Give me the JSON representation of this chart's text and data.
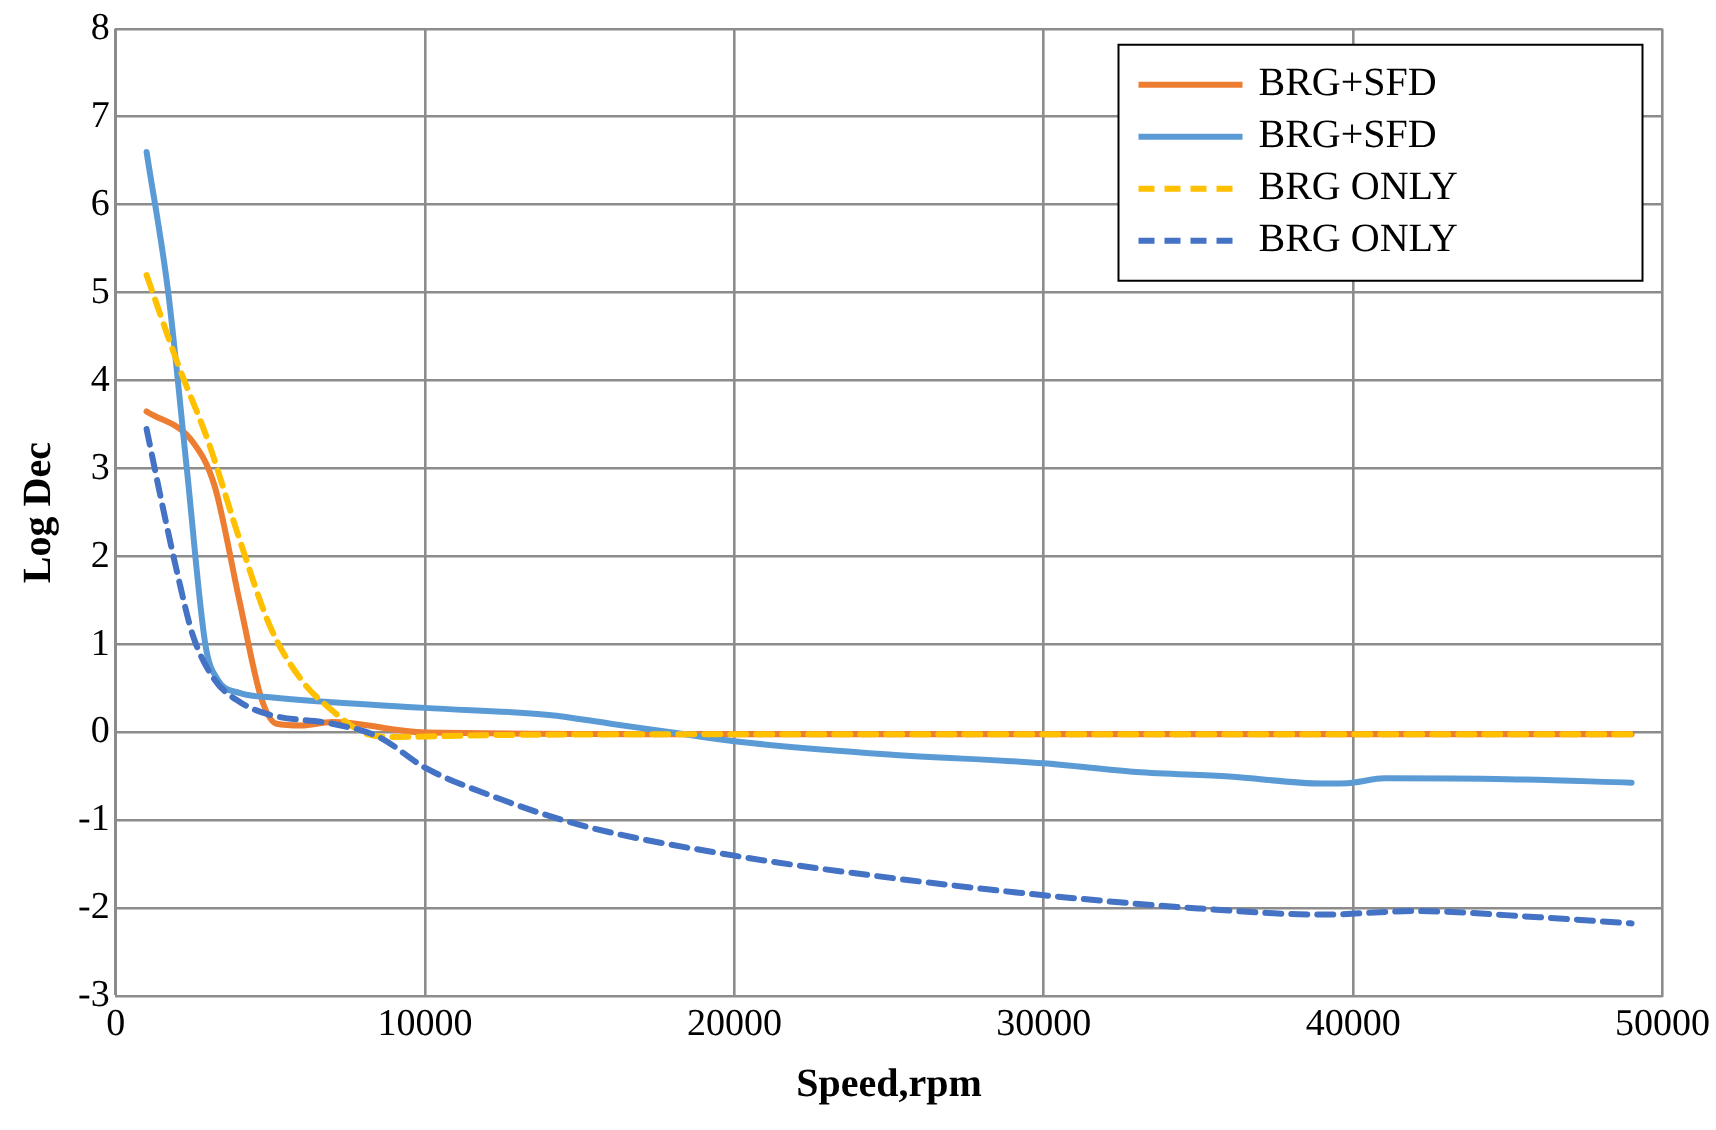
{
  "chart_data": {
    "type": "line",
    "xlabel": "Speed,rpm",
    "ylabel": "Log Dec",
    "xlim": [
      0,
      50000
    ],
    "xticks": [
      0,
      10000,
      20000,
      30000,
      40000,
      50000
    ],
    "ylim": [
      -3,
      8
    ],
    "yticks": [
      -3,
      -2,
      -1,
      0,
      1,
      2,
      3,
      4,
      5,
      6,
      7,
      8
    ],
    "grid": true,
    "legend": "top right",
    "marker": "none",
    "series": [
      {
        "name": "BRG+SFD",
        "color": "#ed7d31",
        "line_style": "solid",
        "x": [
          1000,
          2500,
          3200,
          4000,
          4700,
          5200,
          6000,
          7000,
          10000,
          20000,
          30000,
          40000,
          49000
        ],
        "values": [
          3.65,
          3.3,
          2.8,
          1.5,
          0.4,
          0.1,
          0.08,
          0.12,
          0,
          -0.02,
          -0.02,
          -0.02,
          -0.02
        ]
      },
      {
        "name": "BRG+SFD",
        "color": "#5b9bd5",
        "line_style": "solid",
        "x": [
          1000,
          1700,
          2300,
          2900,
          3300,
          4000,
          5000,
          10000,
          14000,
          16000,
          18000,
          20000,
          25000,
          30000,
          33000,
          36000,
          39000,
          40000,
          41000,
          45000,
          49000
        ],
        "values": [
          6.6,
          5,
          3,
          1,
          0.6,
          0.45,
          0.4,
          0.28,
          0.2,
          0.1,
          0,
          -0.1,
          -0.25,
          -0.35,
          -0.45,
          -0.5,
          -0.58,
          -0.57,
          -0.52,
          -0.53,
          -0.57
        ]
      },
      {
        "name": "BRG ONLY",
        "color": "#ffc000",
        "line_style": "dashed",
        "x": [
          1000,
          2000,
          3000,
          4000,
          5000,
          6000,
          7000,
          8000,
          9000,
          12000,
          20000,
          30000,
          40000,
          49000
        ],
        "values": [
          5.2,
          4.2,
          3.3,
          2.2,
          1.2,
          0.6,
          0.25,
          0,
          -0.05,
          -0.03,
          -0.02,
          -0.02,
          -0.02,
          -0.02
        ]
      },
      {
        "name": "BRG ONLY",
        "color": "#4472c4",
        "line_style": "dashed",
        "x": [
          1000,
          1500,
          2000,
          2500,
          3200,
          4000,
          5000,
          7000,
          8500,
          10000,
          12000,
          15000,
          20000,
          25000,
          30000,
          35000,
          39000,
          42000,
          46000,
          49000
        ],
        "values": [
          3.45,
          2.6,
          1.8,
          1.1,
          0.6,
          0.35,
          0.2,
          0.1,
          -0.05,
          -0.4,
          -0.7,
          -1.05,
          -1.4,
          -1.65,
          -1.85,
          -2,
          -2.07,
          -2.03,
          -2.1,
          -2.17
        ]
      }
    ]
  }
}
